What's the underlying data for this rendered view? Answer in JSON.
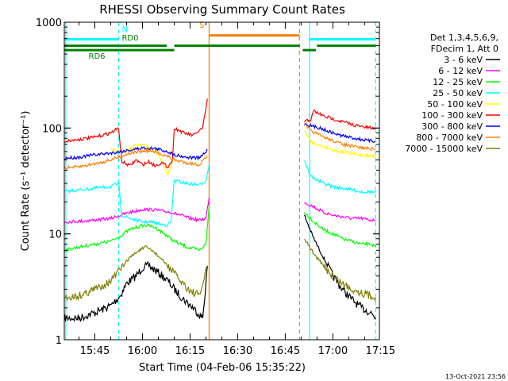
{
  "chart_data": {
    "type": "line",
    "title": "RHESSI Observing Summary Count Rates",
    "xlabel": "Start Time (04-Feb-06 15:35:22)",
    "ylabel": "Count Rate (s⁻¹ detector⁻¹)",
    "xlim": [
      "15:35:22",
      "17:14:40"
    ],
    "ylim": [
      1,
      1000
    ],
    "yscale": "log",
    "x_ticks": [
      "15:45",
      "16:00",
      "16:15",
      "16:30",
      "16:45",
      "17:00",
      "17:15"
    ],
    "y_ticks": [
      "1",
      "10",
      "100",
      "1000"
    ],
    "timestamp": "13-Oct-2021 23:56",
    "legend": {
      "placement": "right",
      "header": [
        "Det 1,3,4,5,6,9,",
        "FDecim 1, Att 0"
      ],
      "entries": [
        {
          "label": "3 - 6 keV",
          "color": "#000000"
        },
        {
          "label": "6 - 12 keV",
          "color": "#ff00ff"
        },
        {
          "label": "12 - 25 keV",
          "color": "#00ff00"
        },
        {
          "label": "25 - 50 keV",
          "color": "#00ffff"
        },
        {
          "label": "50 - 100 keV",
          "color": "#ffff00"
        },
        {
          "label": "100 - 300 keV",
          "color": "#ff0000"
        },
        {
          "label": "300 - 800 keV",
          "color": "#0000ff"
        },
        {
          "label": "800 - 7000 keV",
          "color": "#ff8000"
        },
        {
          "label": "7000 - 15000 keV",
          "color": "#808000"
        }
      ]
    },
    "flags": [
      {
        "label": "N",
        "color": "#00ffff",
        "level": 690,
        "segments": [
          [
            "15:35:22",
            "15:52:30"
          ],
          [
            "16:52:40",
            "17:13:30"
          ]
        ]
      },
      {
        "label": "S",
        "color": "#ff8000",
        "level": 750,
        "segments": [
          [
            "16:21:00",
            "16:49:30"
          ]
        ]
      },
      {
        "label": "RD0",
        "color": "#008000",
        "level": 600,
        "segments": [
          [
            "15:35:22",
            "16:07:40"
          ],
          [
            "16:10:00",
            "16:49:30"
          ],
          [
            "16:55:00",
            "17:13:30"
          ]
        ]
      },
      {
        "label": "RD6",
        "color": "#008000",
        "level": 545,
        "segments": [
          [
            "15:35:22",
            "16:10:00"
          ],
          [
            "16:50:30",
            "16:54:40"
          ]
        ]
      }
    ],
    "vlines": [
      {
        "x": "15:35:50",
        "color": "#00ffff",
        "style": "solid"
      },
      {
        "x": "15:52:30",
        "color": "#00ffff",
        "style": "dashed"
      },
      {
        "x": "16:21:00",
        "color": "#ff8000",
        "style": "solid"
      },
      {
        "x": "16:49:30",
        "color": "#ff8000",
        "style": "dashed"
      },
      {
        "x": "16:52:40",
        "color": "#00ffff",
        "style": "solid"
      },
      {
        "x": "17:13:30",
        "color": "#00ffff",
        "style": "dashed"
      }
    ],
    "series": [
      {
        "name": "3 - 6 keV",
        "color": "#000000",
        "x": [
          "15:35:30",
          "15:40:00",
          "15:45:00",
          "15:50:00",
          "15:53:00",
          "15:55:00",
          "15:58:00",
          "16:00:00",
          "16:02:00",
          "16:05:00",
          "16:08:00",
          "16:10:00",
          "16:13:00",
          "16:16:00",
          "16:19:00",
          "16:20:30"
        ],
        "y": [
          1.6,
          1.6,
          1.8,
          2.1,
          2.6,
          3.4,
          4.0,
          4.8,
          5.0,
          4.3,
          3.6,
          3.0,
          2.4,
          2.0,
          1.6,
          5.0
        ],
        "x2": [
          "16:51:00",
          "16:54:00",
          "16:57:00",
          "17:00:00",
          "17:03:00",
          "17:06:00",
          "17:09:00",
          "17:12:00",
          "17:13:30"
        ],
        "y2": [
          15.0,
          9.0,
          6.0,
          4.0,
          3.0,
          2.4,
          2.0,
          1.8,
          1.6
        ]
      },
      {
        "name": "6 - 12 keV",
        "color": "#ff00ff",
        "x": [
          "15:35:30",
          "15:40:00",
          "15:45:00",
          "15:50:00",
          "15:53:00",
          "15:56:00",
          "16:00:00",
          "16:03:00",
          "16:06:00",
          "16:09:00",
          "16:12:00",
          "16:15:00",
          "16:18:00",
          "16:20:00",
          "16:21:00"
        ],
        "y": [
          13.0,
          13.2,
          13.5,
          14.0,
          15.0,
          16.0,
          17.0,
          17.0,
          16.5,
          16.0,
          15.0,
          14.0,
          13.5,
          14.0,
          22.0
        ],
        "x2": [
          "16:51:00",
          "16:54:00",
          "16:57:00",
          "17:00:00",
          "17:03:00",
          "17:06:00",
          "17:09:00",
          "17:12:00",
          "17:13:30"
        ],
        "y2": [
          20.0,
          18.0,
          16.0,
          15.0,
          14.5,
          14.0,
          14.0,
          13.5,
          13.5
        ]
      },
      {
        "name": "12 - 25 keV",
        "color": "#00ff00",
        "x": [
          "15:35:30",
          "15:40:00",
          "15:45:00",
          "15:50:00",
          "15:53:00",
          "15:56:00",
          "16:00:00",
          "16:02:00",
          "16:04:00",
          "16:07:00",
          "16:10:00",
          "16:14:00",
          "16:18:00",
          "16:20:00",
          "16:21:00"
        ],
        "y": [
          7.0,
          7.5,
          8.0,
          8.5,
          9.5,
          11.0,
          12.0,
          12.0,
          11.5,
          10.0,
          8.5,
          7.5,
          7.0,
          8.0,
          18.0
        ],
        "x2": [
          "16:51:00",
          "16:54:00",
          "16:57:00",
          "17:00:00",
          "17:03:00",
          "17:06:00",
          "17:09:00",
          "17:12:00",
          "17:13:30"
        ],
        "y2": [
          16.0,
          13.0,
          11.0,
          10.0,
          9.0,
          8.5,
          8.0,
          8.0,
          7.5
        ]
      },
      {
        "name": "25 - 50 keV",
        "color": "#00ffff",
        "x": [
          "15:35:30",
          "15:40:00",
          "15:45:00",
          "15:50:00",
          "15:52:30",
          "15:53:30",
          "15:56:00",
          "16:00:00",
          "16:03:00",
          "16:05:00",
          "16:07:30",
          "16:09:00",
          "16:10:00",
          "16:14:00",
          "16:18:00",
          "16:20:00",
          "16:21:00"
        ],
        "y": [
          25.0,
          26.0,
          27.0,
          28.0,
          30.0,
          15.0,
          14.0,
          13.0,
          13.0,
          12.5,
          12.0,
          13.0,
          32.0,
          30.0,
          29.0,
          32.0,
          45.0
        ],
        "x2": [
          "16:51:00",
          "16:53:00",
          "16:57:00",
          "17:00:00",
          "17:03:00",
          "17:06:00",
          "17:09:00",
          "17:12:00",
          "17:13:30"
        ],
        "y2": [
          50.0,
          35.0,
          30.0,
          28.0,
          27.0,
          26.0,
          25.0,
          25.0,
          24.5
        ]
      },
      {
        "name": "50 - 100 keV",
        "color": "#ffff00",
        "x": [
          "15:50:00",
          "15:53:00",
          "15:56:00",
          "15:58:00",
          "16:00:00",
          "16:02:00",
          "16:04:00",
          "16:06:00",
          "16:08:00",
          "16:10:00"
        ],
        "y": [
          62.0,
          60.0,
          62.0,
          70.0,
          70.0,
          66.0,
          60.0,
          50.0,
          36.0,
          55.0
        ],
        "x2": [
          "16:51:00",
          "16:53:00",
          "16:56:00",
          "16:59:00",
          "17:02:00",
          "17:05:00",
          "17:08:00",
          "17:11:00",
          "17:13:30"
        ],
        "y2": [
          95.0,
          75.0,
          68.0,
          64.0,
          60.0,
          58.0,
          56.0,
          55.0,
          54.0
        ]
      },
      {
        "name": "100 - 300 keV",
        "color": "#ff0000",
        "x": [
          "15:35:30",
          "15:40:00",
          "15:45:00",
          "15:50:00",
          "15:52:30",
          "15:53:30",
          "15:56:00",
          "15:58:00",
          "16:00:00",
          "16:02:00",
          "16:04:00",
          "16:06:00",
          "16:08:00",
          "16:09:30",
          "16:10:00",
          "16:13:00",
          "16:16:00",
          "16:19:00",
          "16:20:30"
        ],
        "y": [
          75.0,
          78.0,
          82.0,
          90.0,
          100.0,
          48.0,
          44.0,
          50.0,
          45.0,
          48.0,
          44.0,
          47.0,
          43.0,
          50.0,
          100.0,
          90.0,
          85.0,
          100.0,
          190.0
        ],
        "x2": [
          "16:51:00",
          "16:53:00",
          "16:54:00",
          "16:57:00",
          "17:00:00",
          "17:03:00",
          "17:06:00",
          "17:09:00",
          "17:12:00",
          "17:13:30"
        ],
        "y2": [
          115.0,
          120.0,
          145.0,
          130.0,
          122.0,
          115.0,
          108.0,
          103.0,
          100.0,
          98.0
        ]
      },
      {
        "name": "300 - 800 keV",
        "color": "#0000ff",
        "x": [
          "15:35:30",
          "15:40:00",
          "15:45:00",
          "15:50:00",
          "15:53:00",
          "15:56:00",
          "16:00:00",
          "16:04:00",
          "16:08:00",
          "16:10:00",
          "16:14:00",
          "16:18:00",
          "16:20:30"
        ],
        "y": [
          52.0,
          53.0,
          56.0,
          58.0,
          60.0,
          62.0,
          65.0,
          64.0,
          60.0,
          56.0,
          53.0,
          52.0,
          62.0
        ],
        "x2": [
          "16:51:00",
          "16:53:00",
          "16:56:00",
          "16:59:00",
          "17:02:00",
          "17:05:00",
          "17:08:00",
          "17:11:00",
          "17:13:30"
        ],
        "y2": [
          110.0,
          105.0,
          100.0,
          92.0,
          86.0,
          82.0,
          79.0,
          76.0,
          75.0
        ]
      },
      {
        "name": "800 - 7000 keV",
        "color": "#ff8000",
        "x": [
          "15:35:30",
          "15:40:00",
          "15:45:00",
          "15:50:00",
          "15:53:00",
          "15:56:00",
          "15:59:00",
          "16:02:00",
          "16:05:00",
          "16:08:00",
          "16:10:00",
          "16:14:00",
          "16:18:00",
          "16:20:30"
        ],
        "y": [
          42.0,
          43.0,
          46.0,
          50.0,
          54.0,
          58.0,
          60.0,
          61.0,
          58.0,
          54.0,
          50.0,
          47.0,
          45.0,
          55.0
        ],
        "x2": [
          "16:51:00",
          "16:53:00",
          "16:56:00",
          "16:59:00",
          "17:02:00",
          "17:05:00",
          "17:08:00",
          "17:11:00",
          "17:13:30"
        ],
        "y2": [
          108.0,
          95.0,
          85.0,
          78.0,
          72.0,
          68.0,
          66.0,
          64.0,
          63.0
        ]
      },
      {
        "name": "7000 - 15000 keV",
        "color": "#808000",
        "x": [
          "15:35:30",
          "15:40:00",
          "15:45:00",
          "15:50:00",
          "15:53:00",
          "15:56:00",
          "15:59:00",
          "16:01:00",
          "16:03:00",
          "16:06:00",
          "16:09:00",
          "16:12:00",
          "16:15:00",
          "16:18:00",
          "16:20:30"
        ],
        "y": [
          2.5,
          2.6,
          3.0,
          3.6,
          4.6,
          6.0,
          7.0,
          7.5,
          7.0,
          5.8,
          4.6,
          3.6,
          2.9,
          2.6,
          5.0
        ],
        "x2": [
          "16:51:00",
          "16:54:00",
          "16:57:00",
          "17:00:00",
          "17:03:00",
          "17:06:00",
          "17:09:00",
          "17:12:00",
          "17:13:30"
        ],
        "y2": [
          9.0,
          6.5,
          5.0,
          4.0,
          3.4,
          3.0,
          2.8,
          2.6,
          2.5
        ]
      }
    ]
  }
}
